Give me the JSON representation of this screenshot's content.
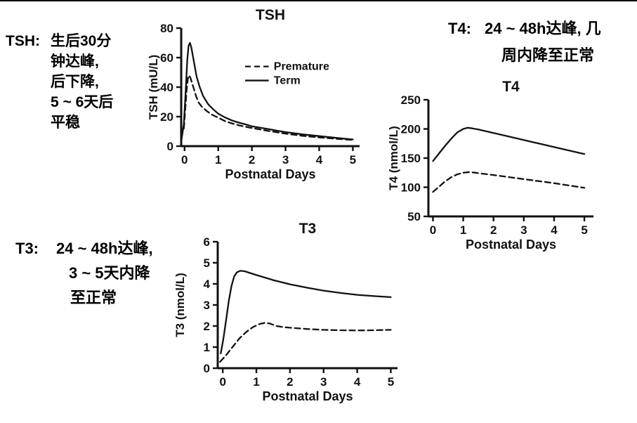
{
  "page": {
    "background": "#ffffff",
    "top_rule_color": "#000000",
    "ink_color": "#111111"
  },
  "annotations": {
    "tsh": {
      "label": "TSH:",
      "lines": [
        "生后30分",
        "钟达峰,",
        "后下降,",
        "5 ~ 6天后",
        "平稳"
      ]
    },
    "t4": {
      "label": "T4:",
      "lines": [
        "24 ~ 48h达峰, 几",
        "周内降至正常"
      ]
    },
    "t3": {
      "label": "T3:",
      "lines": [
        "24 ~ 48h达峰,",
        "3 ~ 5天内降",
        "至正常"
      ]
    }
  },
  "chart_data": [
    {
      "id": "tsh",
      "type": "line",
      "title": "TSH",
      "xlabel": "Postnatal Days",
      "ylabel": "TSH (mU/L)",
      "xlim": [
        -0.1,
        5.2
      ],
      "ylim": [
        0,
        80
      ],
      "xticks": [
        0,
        1,
        2,
        3,
        4,
        5
      ],
      "yticks": [
        0,
        20,
        40,
        60,
        80
      ],
      "grid": false,
      "legend": {
        "position": "inside-right",
        "x1": 1.8,
        "x2": 2.5,
        "x_text": 2.65,
        "entries": [
          {
            "label": "Premature",
            "dashed": true,
            "y": 54
          },
          {
            "label": "Term",
            "dashed": false,
            "y": 44.5
          }
        ]
      },
      "series": [
        {
          "name": "Term",
          "dashed": false,
          "points": [
            [
              -0.1,
              3
            ],
            [
              -0.02,
              15
            ],
            [
              0.04,
              40
            ],
            [
              0.08,
              58
            ],
            [
              0.12,
              68
            ],
            [
              0.16,
              70
            ],
            [
              0.2,
              67
            ],
            [
              0.28,
              57
            ],
            [
              0.36,
              47
            ],
            [
              0.45,
              40
            ],
            [
              0.55,
              34
            ],
            [
              0.7,
              28.5
            ],
            [
              0.85,
              25
            ],
            [
              1,
              22
            ],
            [
              1.2,
              19.5
            ],
            [
              1.4,
              17.5
            ],
            [
              1.6,
              16
            ],
            [
              1.8,
              14.8
            ],
            [
              2,
              13.5
            ],
            [
              2.25,
              12.5
            ],
            [
              2.5,
              11.5
            ],
            [
              2.75,
              10.5
            ],
            [
              3,
              9.5
            ],
            [
              3.5,
              8
            ],
            [
              4,
              6.8
            ],
            [
              4.5,
              5.6
            ],
            [
              5,
              4.5
            ]
          ]
        },
        {
          "name": "Premature",
          "dashed": true,
          "points": [
            [
              -0.02,
              12
            ],
            [
              0.02,
              25
            ],
            [
              0.06,
              38
            ],
            [
              0.1,
              46
            ],
            [
              0.14,
              48
            ],
            [
              0.18,
              46
            ],
            [
              0.26,
              40
            ],
            [
              0.34,
              34
            ],
            [
              0.42,
              29.5
            ],
            [
              0.52,
              26.5
            ],
            [
              0.65,
              24
            ],
            [
              0.8,
              21.5
            ],
            [
              1,
              19.3
            ],
            [
              1.2,
              17
            ],
            [
              1.4,
              15.5
            ],
            [
              1.6,
              14.2
            ],
            [
              1.8,
              13.2
            ],
            [
              2,
              12.3
            ],
            [
              2.5,
              10.3
            ],
            [
              3,
              8.5
            ],
            [
              3.5,
              7
            ],
            [
              4,
              5.9
            ],
            [
              4.5,
              5
            ],
            [
              5,
              4.2
            ]
          ]
        }
      ]
    },
    {
      "id": "t4",
      "type": "line",
      "title": "T4",
      "xlabel": "Postnatal Days",
      "ylabel": "T4 (nmol/L)",
      "xlim": [
        -0.15,
        5.3
      ],
      "ylim": [
        50,
        250
      ],
      "xticks": [
        0,
        1,
        2,
        3,
        4,
        5
      ],
      "yticks": [
        50,
        100,
        150,
        200,
        250
      ],
      "grid": false,
      "series": [
        {
          "name": "Term",
          "dashed": false,
          "points": [
            [
              0,
              145
            ],
            [
              0.2,
              158
            ],
            [
              0.4,
              171
            ],
            [
              0.6,
              183
            ],
            [
              0.8,
              194
            ],
            [
              1,
              200
            ],
            [
              1.15,
              202
            ],
            [
              1.3,
              201
            ],
            [
              1.5,
              199
            ],
            [
              1.75,
              196
            ],
            [
              2,
              193
            ],
            [
              2.5,
              187
            ],
            [
              3,
              181
            ],
            [
              3.5,
              175
            ],
            [
              4,
              169
            ],
            [
              4.5,
              163
            ],
            [
              5,
              157
            ]
          ]
        },
        {
          "name": "Premature",
          "dashed": true,
          "points": [
            [
              0,
              92
            ],
            [
              0.2,
              101
            ],
            [
              0.4,
              110
            ],
            [
              0.6,
              117
            ],
            [
              0.8,
              122
            ],
            [
              1,
              125
            ],
            [
              1.2,
              126
            ],
            [
              1.4,
              125
            ],
            [
              1.6,
              123.5
            ],
            [
              2,
              121
            ],
            [
              2.5,
              117.5
            ],
            [
              3,
              114
            ],
            [
              3.5,
              110.5
            ],
            [
              4,
              107
            ],
            [
              4.5,
              103
            ],
            [
              5,
              99
            ]
          ]
        }
      ]
    },
    {
      "id": "t3",
      "type": "line",
      "title": "T3",
      "xlabel": "Postnatal Days",
      "ylabel": "T3 (nmol/L)",
      "xlim": [
        -0.15,
        5.2
      ],
      "ylim": [
        0,
        6
      ],
      "xticks": [
        0,
        1,
        2,
        3,
        4,
        5
      ],
      "yticks": [
        0,
        1,
        2,
        3,
        4,
        5,
        6
      ],
      "grid": false,
      "series": [
        {
          "name": "Term",
          "dashed": false,
          "points": [
            [
              -0.06,
              0.7
            ],
            [
              0.02,
              1.4
            ],
            [
              0.1,
              2.3
            ],
            [
              0.18,
              3.2
            ],
            [
              0.26,
              3.9
            ],
            [
              0.34,
              4.35
            ],
            [
              0.42,
              4.55
            ],
            [
              0.52,
              4.62
            ],
            [
              0.65,
              4.6
            ],
            [
              0.8,
              4.52
            ],
            [
              1,
              4.42
            ],
            [
              1.25,
              4.3
            ],
            [
              1.5,
              4.18
            ],
            [
              1.75,
              4.08
            ],
            [
              2,
              3.98
            ],
            [
              2.5,
              3.82
            ],
            [
              3,
              3.68
            ],
            [
              3.5,
              3.57
            ],
            [
              4,
              3.48
            ],
            [
              4.5,
              3.42
            ],
            [
              5,
              3.37
            ]
          ]
        },
        {
          "name": "Premature",
          "dashed": true,
          "points": [
            [
              -0.08,
              0.3
            ],
            [
              0.1,
              0.62
            ],
            [
              0.3,
              1.02
            ],
            [
              0.5,
              1.42
            ],
            [
              0.7,
              1.72
            ],
            [
              0.9,
              1.95
            ],
            [
              1.1,
              2.1
            ],
            [
              1.25,
              2.15
            ],
            [
              1.4,
              2.12
            ],
            [
              1.6,
              2
            ],
            [
              1.8,
              1.95
            ],
            [
              2,
              1.92
            ],
            [
              2.5,
              1.86
            ],
            [
              3,
              1.82
            ],
            [
              3.5,
              1.8
            ],
            [
              4,
              1.79
            ],
            [
              4.5,
              1.8
            ],
            [
              5,
              1.82
            ]
          ]
        }
      ]
    }
  ]
}
